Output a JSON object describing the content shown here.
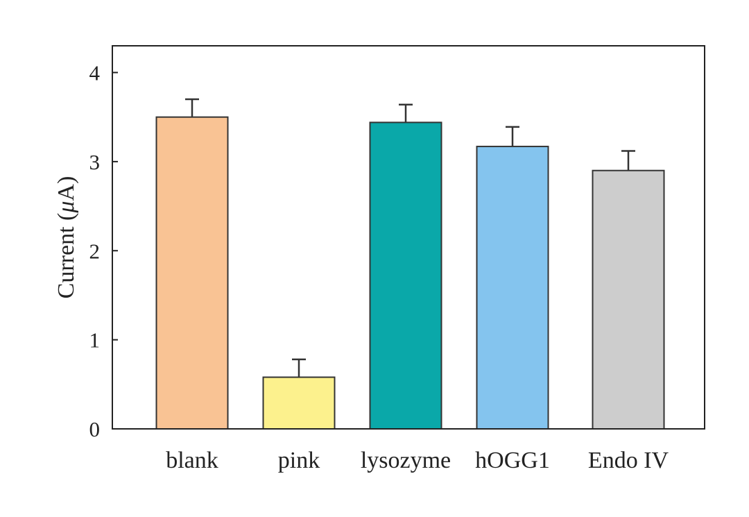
{
  "chart_data": {
    "type": "bar",
    "title": "",
    "xlabel": "",
    "ylabel_prefix": "Current (",
    "ylabel_unit": "μ",
    "ylabel_suffix": "A)",
    "ylim": [
      0,
      4.3
    ],
    "yticks": [
      "0",
      "1",
      "2",
      "3",
      "4"
    ],
    "grid": false,
    "legend": "none",
    "categories": [
      "blank",
      "pink",
      "lysozyme",
      "hOGG1",
      "Endo IV"
    ],
    "values": [
      3.5,
      0.58,
      3.44,
      3.17,
      2.9
    ],
    "errors": [
      0.2,
      0.2,
      0.2,
      0.22,
      0.22
    ],
    "colors": [
      "#F9C394",
      "#FCF18D",
      "#0AA8A9",
      "#84C4EE",
      "#CDCDCD"
    ],
    "edge_color": "#333333"
  }
}
